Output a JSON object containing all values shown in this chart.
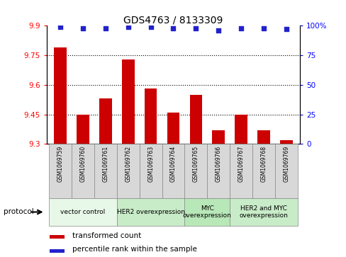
{
  "title": "GDS4763 / 8133309",
  "samples": [
    "GSM1069759",
    "GSM1069760",
    "GSM1069761",
    "GSM1069762",
    "GSM1069763",
    "GSM1069764",
    "GSM1069765",
    "GSM1069766",
    "GSM1069767",
    "GSM1069768",
    "GSM1069769"
  ],
  "bar_values": [
    9.79,
    9.45,
    9.53,
    9.73,
    9.58,
    9.46,
    9.55,
    9.37,
    9.45,
    9.37,
    9.32
  ],
  "bar_base": 9.3,
  "percentile_values": [
    99,
    98,
    98,
    99,
    99,
    98,
    98,
    96,
    98,
    98,
    97
  ],
  "bar_color": "#cc0000",
  "dot_color": "#2222cc",
  "ylim_left": [
    9.3,
    9.9
  ],
  "ylim_right": [
    0,
    100
  ],
  "yticks_left": [
    9.3,
    9.45,
    9.6,
    9.75,
    9.9
  ],
  "ytick_labels_left": [
    "9.3",
    "9.45",
    "9.6",
    "9.75",
    "9.9"
  ],
  "yticks_right": [
    0,
    25,
    50,
    75,
    100
  ],
  "ytick_labels_right": [
    "0",
    "25",
    "50",
    "75",
    "100%"
  ],
  "groups": [
    {
      "label": "vector control",
      "start": 0,
      "end": 3,
      "color": "#e8f8e8"
    },
    {
      "label": "HER2 overexpression",
      "start": 3,
      "end": 6,
      "color": "#c8ecc8"
    },
    {
      "label": "MYC\noverexpression",
      "start": 6,
      "end": 8,
      "color": "#b8e8b8"
    },
    {
      "label": "HER2 and MYC\noverexpression",
      "start": 8,
      "end": 11,
      "color": "#c8ecc8"
    }
  ],
  "protocol_label": "protocol",
  "legend_bar_label": "transformed count",
  "legend_dot_label": "percentile rank within the sample",
  "background_color": "#ffffff",
  "plot_bg_color": "#ffffff",
  "sample_box_color": "#d8d8d8",
  "gridline_color": "#000000"
}
